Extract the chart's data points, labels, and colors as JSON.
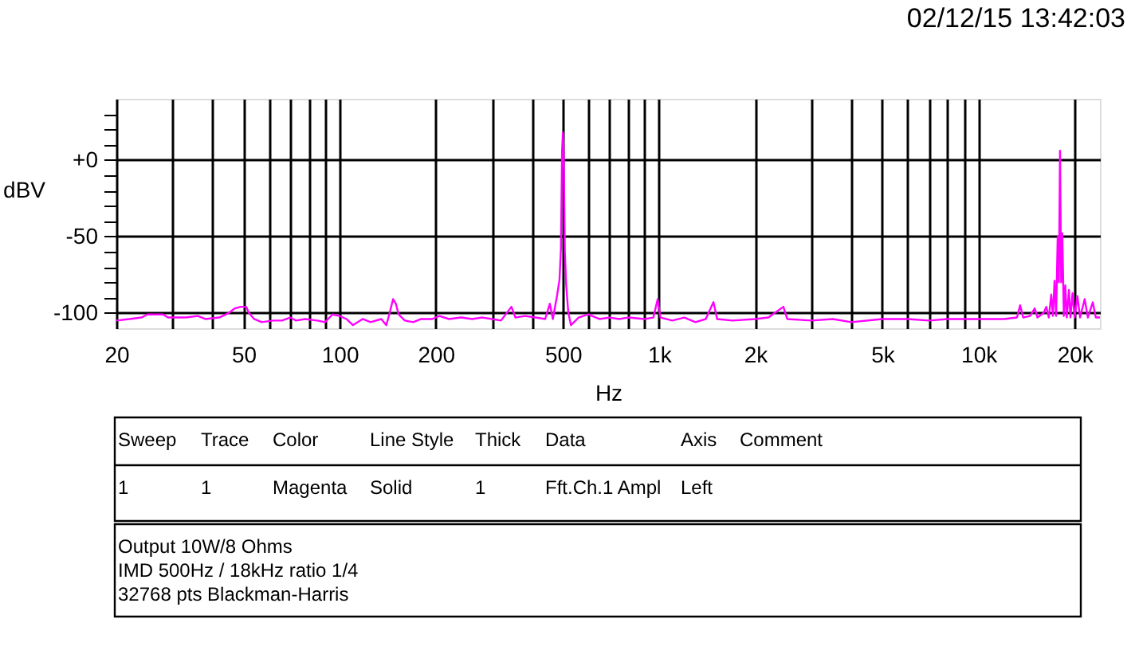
{
  "chart_data": {
    "type": "line",
    "xlabel": "Hz",
    "ylabel": "dBV",
    "log": "x",
    "grid": true,
    "xlim": [
      20,
      24000
    ],
    "ylim": [
      -110,
      40
    ],
    "xticks": [
      20,
      {
        "value": 30,
        "label": null
      },
      {
        "value": 40,
        "label": null
      },
      50,
      {
        "value": 60,
        "label": null
      },
      {
        "value": 70,
        "label": null
      },
      {
        "value": 80,
        "label": null
      },
      {
        "value": 90,
        "label": null
      },
      100,
      200,
      {
        "value": 300,
        "label": null
      },
      {
        "value": 400,
        "label": null
      },
      500,
      {
        "value": 600,
        "label": null
      },
      {
        "value": 700,
        "label": null
      },
      {
        "value": 800,
        "label": null
      },
      {
        "value": 900,
        "label": null
      },
      {
        "value": 1000,
        "label": "1k"
      },
      {
        "value": 2000,
        "label": "2k"
      },
      {
        "value": 3000,
        "label": null
      },
      {
        "value": 4000,
        "label": null
      },
      {
        "value": 5000,
        "label": "5k"
      },
      {
        "value": 6000,
        "label": null
      },
      {
        "value": 7000,
        "label": null
      },
      {
        "value": 8000,
        "label": null
      },
      {
        "value": 9000,
        "label": null
      },
      {
        "value": 10000,
        "label": "10k"
      },
      {
        "value": 20000,
        "label": "20k"
      }
    ],
    "yticks": [
      -100,
      {
        "value": -90,
        "label": null
      },
      {
        "value": -80,
        "label": null
      },
      {
        "value": -70,
        "label": null
      },
      {
        "value": -60,
        "label": null
      },
      -50,
      {
        "value": -40,
        "label": null
      },
      {
        "value": -30,
        "label": null
      },
      {
        "value": -20,
        "label": null
      },
      {
        "value": -10,
        "label": null
      },
      {
        "value": 0,
        "label": "+0"
      },
      {
        "value": 10,
        "label": null
      },
      {
        "value": 20,
        "label": null
      },
      {
        "value": 30,
        "label": null
      }
    ],
    "x": [
      20,
      22,
      24,
      25,
      28,
      29,
      33,
      36,
      38,
      42,
      45,
      47,
      49,
      51,
      52,
      54,
      57,
      62,
      66,
      70,
      73,
      78,
      85,
      90,
      95,
      100,
      105,
      110,
      118,
      125,
      135,
      140,
      143,
      147,
      150,
      153,
      160,
      170,
      180,
      195,
      205,
      220,
      240,
      260,
      280,
      300,
      320,
      345,
      355,
      380,
      410,
      440,
      455,
      465,
      480,
      488,
      493,
      497,
      500,
      503,
      507,
      512,
      520,
      530,
      560,
      600,
      650,
      700,
      750,
      800,
      900,
      960,
      990,
      1010,
      1100,
      1200,
      1300,
      1400,
      1480,
      1520,
      1700,
      2000,
      2200,
      2450,
      2520,
      3000,
      3500,
      4000,
      5000,
      6000,
      7000,
      8000,
      10000,
      12000,
      13200,
      13500,
      13800,
      14500,
      15000,
      15300,
      16000,
      16300,
      16600,
      16900,
      17100,
      17300,
      17500,
      17700,
      17850,
      18000,
      18150,
      18300,
      18500,
      18700,
      18900,
      19200,
      19400,
      19700,
      20000,
      20400,
      20800,
      21500,
      22000,
      22800,
      23300,
      24000
    ],
    "series": [
      {
        "color": "#ff00ff",
        "values": [
          -105,
          -104,
          -103,
          -101,
          -101,
          -103,
          -103,
          -102,
          -104,
          -103,
          -100,
          -97,
          -96,
          -96,
          -100,
          -104,
          -106,
          -105,
          -105,
          -103,
          -105,
          -104,
          -105,
          -106,
          -101,
          -102,
          -104,
          -108,
          -104,
          -106,
          -104,
          -108,
          -101,
          -91,
          -94,
          -101,
          -105,
          -106,
          -104,
          -104,
          -102,
          -104,
          -103,
          -104,
          -103,
          -104,
          -105,
          -96,
          -103,
          -102,
          -103,
          -104,
          -94,
          -104,
          -88,
          -78,
          -58,
          6,
          18,
          5,
          -60,
          -82,
          -100,
          -108,
          -103,
          -101,
          -104,
          -103,
          -104,
          -103,
          -104,
          -103,
          -91,
          -103,
          -105,
          -103,
          -106,
          -104,
          -93,
          -104,
          -105,
          -104,
          -103,
          -96,
          -104,
          -105,
          -104,
          -106,
          -104,
          -104,
          -105,
          -104,
          -104,
          -104,
          -103,
          -95,
          -103,
          -102,
          -97,
          -103,
          -100,
          -96,
          -103,
          -88,
          -102,
          -79,
          -102,
          -50,
          -80,
          6,
          -80,
          -48,
          -102,
          -82,
          -103,
          -85,
          -103,
          -87,
          -103,
          -89,
          -103,
          -91,
          -103,
          -93,
          -103,
          -103
        ]
      }
    ],
    "annotations": [
      "02/12/15 13:42:03",
      "Sweep",
      "Trace",
      "Color",
      "Line Style",
      "Thick",
      "Data",
      "Axis",
      "Comment",
      "1",
      "1",
      "Magenta",
      "Solid",
      "1",
      "Fft.Ch.1 Ampl",
      "Left",
      "Output 10W/8 Ohms",
      "IMD 500Hz / 18kHz ratio 1/4",
      "32768 pts Blackman-Harris"
    ]
  }
}
